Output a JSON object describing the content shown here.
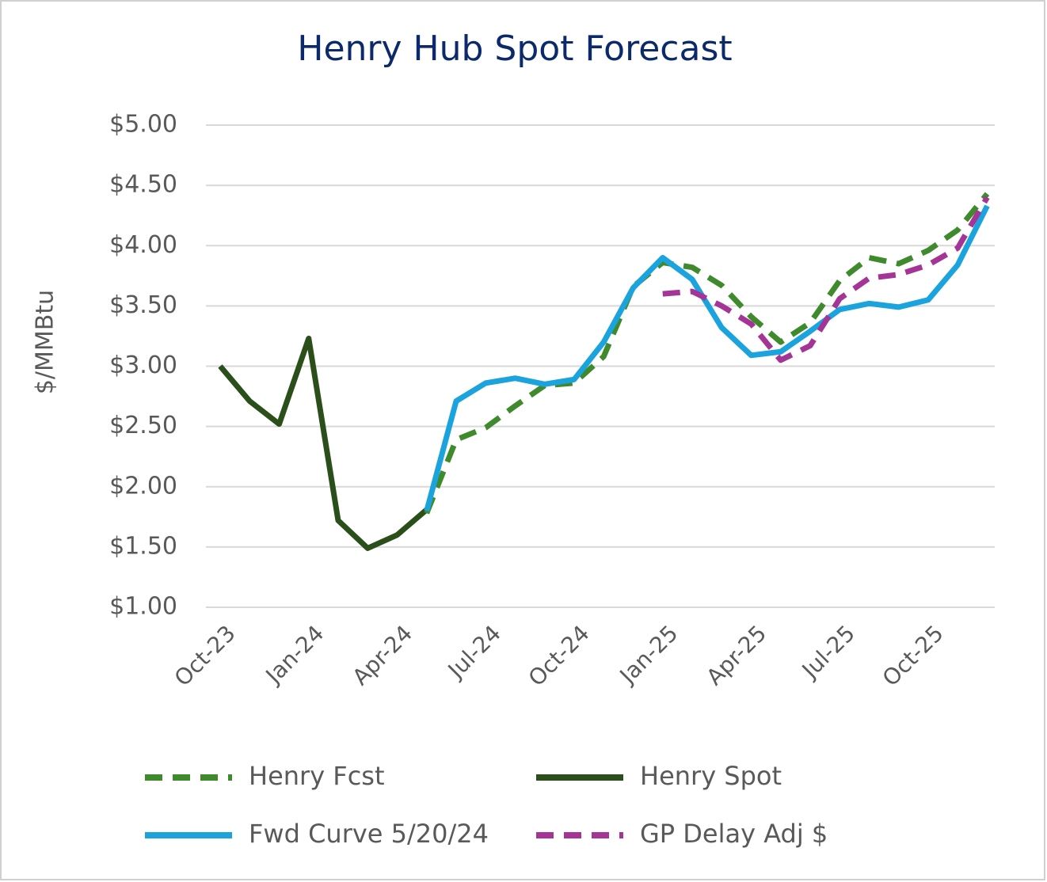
{
  "chart_data": {
    "type": "line",
    "title": "Henry Hub Spot Forecast",
    "y_label": "$/MMBtu",
    "categories": [
      "Oct-23",
      null,
      null,
      "Jan-24",
      null,
      null,
      "Apr-24",
      null,
      null,
      "Jul-24",
      null,
      null,
      "Oct-24",
      null,
      null,
      "Jan-25",
      null,
      null,
      "Apr-25",
      null,
      null,
      "Jul-25",
      null,
      null,
      "Oct-25",
      null,
      null
    ],
    "series": [
      {
        "name": "Henry Fcst",
        "color": "#3f8a2c",
        "dashed": true,
        "values": [
          null,
          null,
          null,
          null,
          null,
          null,
          null,
          1.78,
          2.39,
          2.49,
          2.67,
          2.84,
          2.86,
          3.08,
          3.66,
          3.86,
          3.82,
          3.67,
          3.41,
          3.2,
          3.36,
          3.71,
          3.9,
          3.85,
          3.96,
          4.13,
          4.43
        ]
      },
      {
        "name": "Henry Spot",
        "color": "#2b4f1a",
        "dashed": false,
        "values": [
          3.0,
          2.71,
          2.52,
          3.23,
          1.72,
          1.49,
          1.6,
          1.81,
          null,
          null,
          null,
          null,
          null,
          null,
          null,
          null,
          null,
          null,
          null,
          null,
          null,
          null,
          null,
          null,
          null,
          null,
          null
        ]
      },
      {
        "name": "Fwd Curve 5/20/24",
        "color": "#1aa3dc",
        "dashed": false,
        "values": [
          null,
          null,
          null,
          null,
          null,
          null,
          null,
          1.8,
          2.71,
          2.86,
          2.9,
          2.85,
          2.89,
          3.2,
          3.65,
          3.9,
          3.72,
          3.32,
          3.09,
          3.12,
          3.29,
          3.47,
          3.52,
          3.49,
          3.55,
          3.84,
          4.33
        ]
      },
      {
        "name": "GP Delay Adj $",
        "color": "#a43597",
        "dashed": true,
        "values": [
          null,
          null,
          null,
          null,
          null,
          null,
          null,
          null,
          null,
          null,
          null,
          null,
          null,
          null,
          null,
          3.6,
          3.62,
          3.5,
          3.35,
          3.05,
          3.17,
          3.56,
          3.73,
          3.76,
          3.84,
          3.98,
          4.4
        ]
      }
    ],
    "ylim": [
      1,
      5
    ],
    "yticks": [
      {
        "value": 1,
        "label": "$1.00"
      },
      {
        "value": 1.5,
        "label": "$1.50"
      },
      {
        "value": 2,
        "label": "$2.00"
      },
      {
        "value": 2.5,
        "label": "$2.50"
      },
      {
        "value": 3,
        "label": "$3.00"
      },
      {
        "value": 3.5,
        "label": "$3.50"
      },
      {
        "value": 4,
        "label": "$4.00"
      },
      {
        "value": 4.5,
        "label": "$4.50"
      },
      {
        "value": 5,
        "label": "$5.00"
      }
    ],
    "grid": true
  }
}
